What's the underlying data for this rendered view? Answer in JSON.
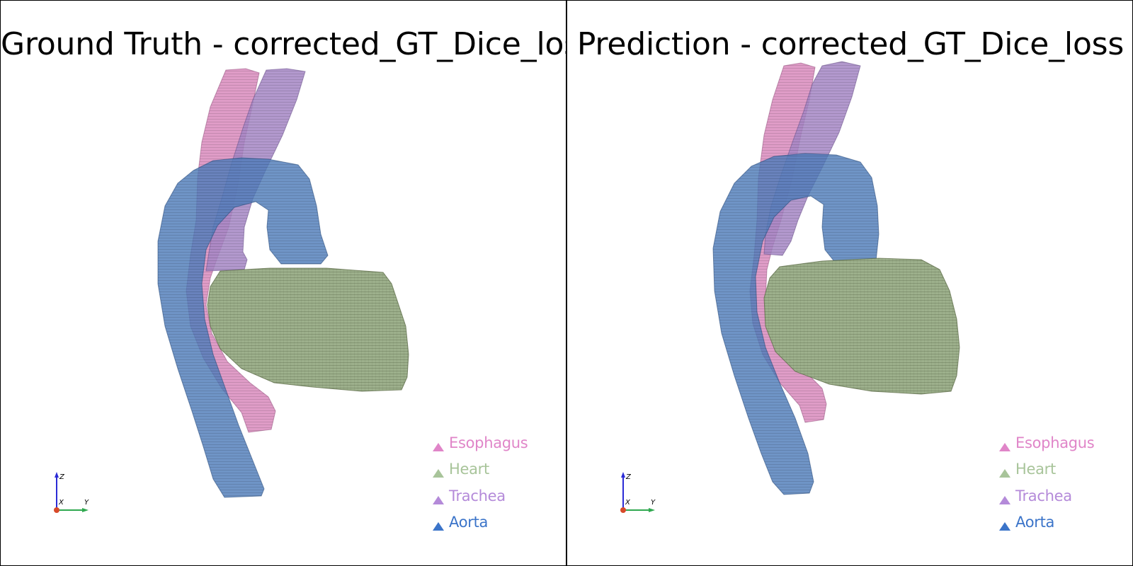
{
  "window": {
    "background": "#ffffff",
    "border_color": "#000000"
  },
  "views": [
    {
      "title": "Ground Truth - corrected_GT_Dice_loss",
      "axes": {
        "x": "X",
        "y": "Y",
        "z": "Z"
      }
    },
    {
      "title": "Prediction - corrected_GT_Dice_loss",
      "axes": {
        "x": "X",
        "y": "Y",
        "z": "Z"
      }
    }
  ],
  "legend": [
    {
      "label": "Esophagus",
      "color": "#e085c8",
      "icon": "triangle-marker"
    },
    {
      "label": "Heart",
      "color": "#a8c49a",
      "icon": "triangle-marker"
    },
    {
      "label": "Trachea",
      "color": "#b48ad9",
      "icon": "triangle-marker"
    },
    {
      "label": "Aorta",
      "color": "#3b74c9",
      "icon": "triangle-marker"
    }
  ],
  "structure_colors": {
    "esophagus_fill": "#d98bbd",
    "heart_fill": "#9db08c",
    "trachea_fill": "#a586c4",
    "aorta_fill": "#4f7dba",
    "axis_x": "#2b2bd6",
    "axis_y": "#2fa84f",
    "axis_origin": "#d84a2a"
  }
}
